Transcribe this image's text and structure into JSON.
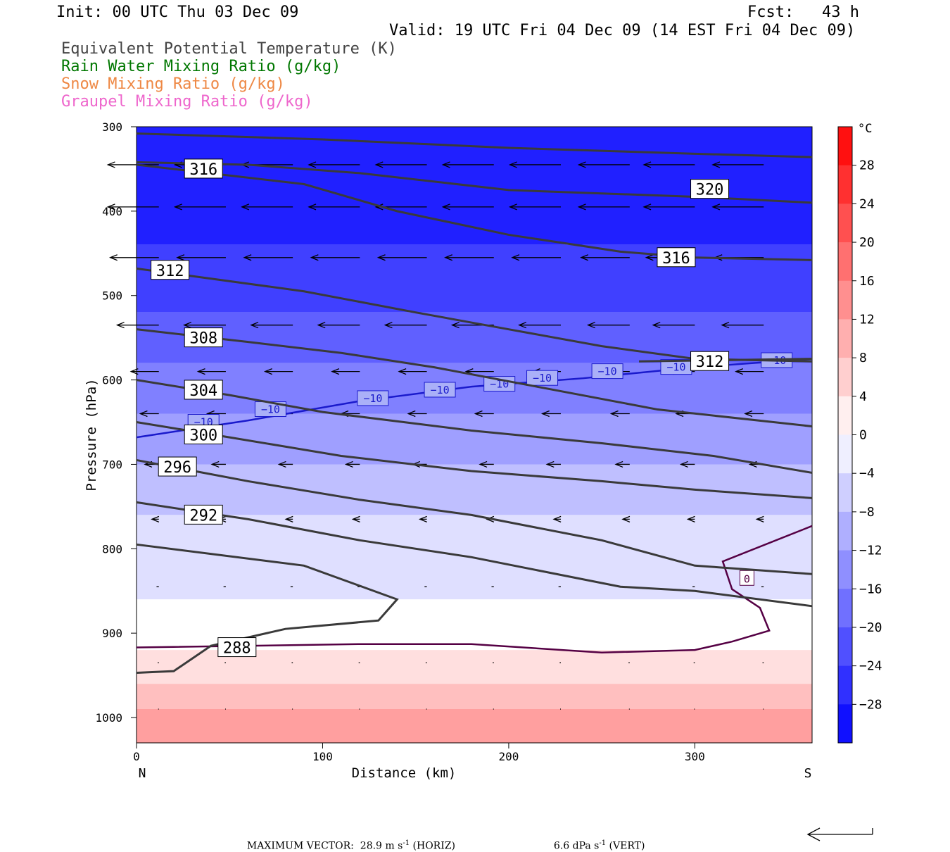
{
  "header": {
    "init": "Init: 00 UTC Thu 03 Dec 09",
    "fcst": "Fcst:   43 h",
    "valid": "Valid: 19 UTC Fri 04 Dec 09 (14 EST Fri 04 Dec 09)"
  },
  "legend_titles": [
    {
      "text": "Equivalent Potential Temperature (K)",
      "color": "#444444"
    },
    {
      "text": "Rain Water Mixing Ratio (g/kg)",
      "color": "#007700"
    },
    {
      "text": "Snow Mixing Ratio (g/kg)",
      "color": "#ee8844"
    },
    {
      "text": "Graupel Mixing Ratio (g/kg)",
      "color": "#ee66cc"
    }
  ],
  "footer": {
    "max_vector_label": "MAXIMUM VECTOR:  28.9 m s",
    "horiz_unit": "-1",
    "horiz_suffix": " (HORIZ)",
    "vert_label": "6.6 dPa s",
    "vert_unit": "-1",
    "vert_suffix": " (VERT)"
  },
  "chart_data": {
    "type": "cross-section contour",
    "xlabel": "Distance (km)",
    "ylabel": "Pressure (hPa)",
    "xlim": [
      0,
      363
    ],
    "ylim": [
      1030,
      300
    ],
    "x_ticks": [
      0,
      100,
      200,
      300
    ],
    "y_ticks": [
      300,
      400,
      500,
      600,
      700,
      800,
      900,
      1000
    ],
    "x_end_labels": {
      "left": "N",
      "right": "S"
    },
    "colorbar": {
      "unit": "°C",
      "tick_labels": [
        "28",
        "24",
        "20",
        "16",
        "12",
        "8",
        "4",
        "0",
        "−4",
        "−8",
        "−12",
        "−16",
        "−20",
        "−24",
        "−28"
      ],
      "tick_values": [
        28,
        24,
        20,
        16,
        12,
        8,
        4,
        0,
        -4,
        -8,
        -12,
        -16,
        -20,
        -24,
        -28
      ],
      "range": [
        -32,
        32
      ],
      "cold_color": "#0000ff",
      "warm_color": "#ff0000",
      "mid_color": "#ffffff"
    },
    "temperature_field": [
      {
        "points": [
          [
            0,
            300
          ],
          [
            363,
            300
          ],
          [
            363,
            440
          ],
          [
            0,
            440
          ]
        ],
        "temp": -28
      },
      {
        "points": [
          [
            0,
            440
          ],
          [
            363,
            440
          ],
          [
            363,
            520
          ],
          [
            0,
            520
          ]
        ],
        "temp": -24
      },
      {
        "points": [
          [
            0,
            520
          ],
          [
            363,
            520
          ],
          [
            363,
            580
          ],
          [
            0,
            580
          ]
        ],
        "temp": -20
      },
      {
        "points": [
          [
            0,
            580
          ],
          [
            363,
            580
          ],
          [
            363,
            640
          ],
          [
            0,
            640
          ]
        ],
        "temp": -16
      },
      {
        "points": [
          [
            0,
            640
          ],
          [
            363,
            640
          ],
          [
            363,
            700
          ],
          [
            0,
            700
          ]
        ],
        "temp": -12
      },
      {
        "points": [
          [
            0,
            700
          ],
          [
            363,
            700
          ],
          [
            363,
            760
          ],
          [
            0,
            760
          ]
        ],
        "temp": -8
      },
      {
        "points": [
          [
            0,
            760
          ],
          [
            363,
            760
          ],
          [
            363,
            860
          ],
          [
            0,
            860
          ]
        ],
        "temp": -4
      },
      {
        "points": [
          [
            0,
            860
          ],
          [
            363,
            860
          ],
          [
            363,
            920
          ],
          [
            0,
            920
          ]
        ],
        "temp": 0
      },
      {
        "points": [
          [
            0,
            920
          ],
          [
            363,
            920
          ],
          [
            363,
            960
          ],
          [
            0,
            960
          ]
        ],
        "temp": 4
      },
      {
        "points": [
          [
            0,
            960
          ],
          [
            363,
            960
          ],
          [
            363,
            990
          ],
          [
            0,
            990
          ]
        ],
        "temp": 8
      },
      {
        "points": [
          [
            0,
            990
          ],
          [
            363,
            990
          ],
          [
            363,
            1030
          ],
          [
            0,
            1030
          ]
        ],
        "temp": 12
      }
    ],
    "theta_e_contours": [
      {
        "label": "320",
        "points": [
          [
            0,
            308
          ],
          [
            100,
            315
          ],
          [
            200,
            325
          ],
          [
            300,
            332
          ],
          [
            363,
            336
          ]
        ],
        "label_at": [
          308,
          374
        ]
      },
      {
        "label": "316",
        "points": [
          [
            0,
            345
          ],
          [
            90,
            368
          ],
          [
            140,
            400
          ],
          [
            200,
            428
          ],
          [
            260,
            448
          ],
          [
            300,
            455
          ],
          [
            363,
            458
          ]
        ],
        "label_at": [
          290,
          455
        ]
      },
      {
        "label": "316",
        "points": [
          [
            0,
            342
          ],
          [
            60,
            345
          ],
          [
            120,
            355
          ],
          [
            200,
            375
          ],
          [
            300,
            383
          ],
          [
            363,
            390
          ]
        ],
        "label_at": [
          36,
          350
        ]
      },
      {
        "label": "312",
        "points": [
          [
            0,
            468
          ],
          [
            90,
            495
          ],
          [
            150,
            520
          ],
          [
            200,
            540
          ],
          [
            250,
            560
          ],
          [
            300,
            575
          ],
          [
            363,
            578
          ]
        ],
        "label_at": [
          18,
          470
        ]
      },
      {
        "label": "312",
        "points": [
          [
            270,
            578
          ],
          [
            363,
            575
          ]
        ],
        "label_at": [
          308,
          578
        ]
      },
      {
        "label": "308",
        "points": [
          [
            0,
            540
          ],
          [
            60,
            555
          ],
          [
            110,
            568
          ],
          [
            160,
            585
          ],
          [
            220,
            610
          ],
          [
            280,
            635
          ],
          [
            363,
            655
          ]
        ],
        "label_at": [
          36,
          550
        ]
      },
      {
        "label": "304",
        "points": [
          [
            0,
            600
          ],
          [
            50,
            618
          ],
          [
            100,
            638
          ],
          [
            180,
            660
          ],
          [
            250,
            675
          ],
          [
            310,
            690
          ],
          [
            363,
            710
          ]
        ],
        "label_at": [
          36,
          612
        ]
      },
      {
        "label": "300",
        "points": [
          [
            0,
            650
          ],
          [
            50,
            668
          ],
          [
            110,
            690
          ],
          [
            180,
            708
          ],
          [
            250,
            720
          ],
          [
            300,
            730
          ],
          [
            363,
            740
          ]
        ],
        "label_at": [
          36,
          665
        ]
      },
      {
        "label": "296",
        "points": [
          [
            0,
            695
          ],
          [
            60,
            720
          ],
          [
            120,
            742
          ],
          [
            180,
            760
          ],
          [
            250,
            790
          ],
          [
            300,
            820
          ],
          [
            363,
            830
          ]
        ],
        "label_at": [
          22,
          703
        ]
      },
      {
        "label": "292",
        "points": [
          [
            0,
            745
          ],
          [
            60,
            765
          ],
          [
            120,
            790
          ],
          [
            180,
            810
          ],
          [
            260,
            845
          ],
          [
            300,
            850
          ],
          [
            363,
            868
          ]
        ],
        "label_at": [
          36,
          760
        ]
      },
      {
        "label": "288",
        "points": [
          [
            0,
            795
          ],
          [
            90,
            820
          ],
          [
            140,
            860
          ],
          [
            130,
            885
          ],
          [
            80,
            895
          ],
          [
            40,
            915
          ],
          [
            20,
            945
          ],
          [
            0,
            947
          ]
        ],
        "label_at": [
          54,
          917
        ]
      }
    ],
    "isotherm_minus10": {
      "label": "−10",
      "points": [
        [
          0,
          668
        ],
        [
          60,
          648
        ],
        [
          120,
          625
        ],
        [
          180,
          608
        ],
        [
          240,
          598
        ],
        [
          300,
          585
        ],
        [
          363,
          575
        ]
      ],
      "label_positions": [
        [
          36,
          650
        ],
        [
          72,
          635
        ],
        [
          127,
          622
        ],
        [
          163,
          612
        ],
        [
          195,
          605
        ],
        [
          218,
          598
        ],
        [
          253,
          590
        ],
        [
          290,
          585
        ],
        [
          344,
          577
        ]
      ]
    },
    "zero_isotherm": {
      "label": "0",
      "points": [
        [
          0,
          917
        ],
        [
          120,
          913
        ],
        [
          180,
          913
        ],
        [
          250,
          923
        ],
        [
          300,
          920
        ],
        [
          320,
          910
        ],
        [
          340,
          897
        ],
        [
          335,
          870
        ],
        [
          320,
          848
        ],
        [
          315,
          815
        ],
        [
          363,
          773
        ]
      ],
      "label_at": [
        328,
        835
      ]
    },
    "wind_vector_scale": {
      "horiz_m_s": 28.9,
      "vert_dPa_s": 6.6
    },
    "wind_rows": [
      {
        "p": 345,
        "u": -22
      },
      {
        "p": 395,
        "u": -22
      },
      {
        "p": 455,
        "u": -21
      },
      {
        "p": 535,
        "u": -18
      },
      {
        "p": 590,
        "u": -12
      },
      {
        "p": 640,
        "u": -8
      },
      {
        "p": 700,
        "u": -6
      },
      {
        "p": 765,
        "u": -3
      },
      {
        "p": 845,
        "u": -1
      },
      {
        "p": 935,
        "u": -0.5
      },
      {
        "p": 990,
        "u": -0.3
      }
    ],
    "wind_columns_km": [
      12,
      48,
      84,
      120,
      156,
      192,
      228,
      265,
      300,
      337
    ]
  }
}
